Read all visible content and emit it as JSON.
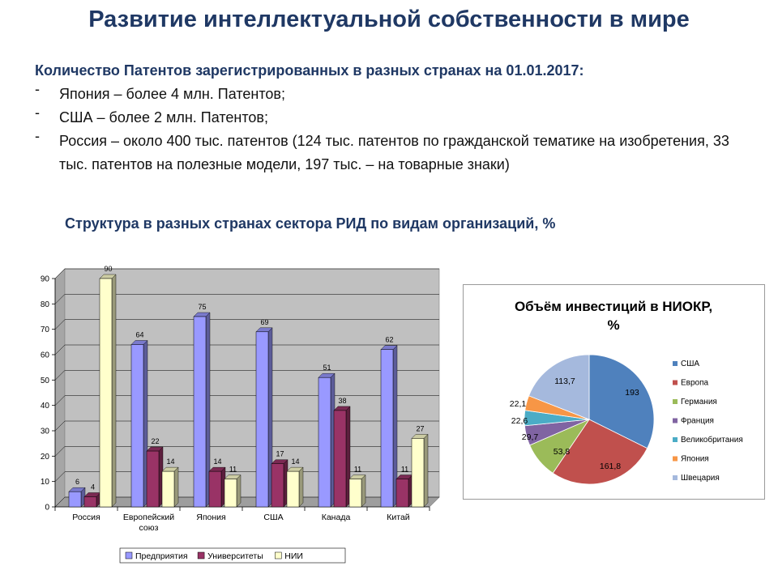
{
  "title": "Развитие интеллектуальной собственности в мире",
  "patents": {
    "heading": "Количество Патентов зарегистрированных в разных странах на 01.01.2017:",
    "bullet_marker": "-",
    "items": [
      "Япония – более 4 млн. Патентов;",
      "США – более 2 млн. Патентов;",
      "Россия – около 400 тыс. патентов (124 тыс. патентов по гражданской тематике на изобретения, 33 тыс. патентов на полезные модели, 197 тыс. – на товарные знаки)"
    ]
  },
  "structure_title": "Структура в разных странах сектора РИД по видам организаций, %",
  "chart_data": [
    {
      "type": "bar",
      "title": "",
      "xlabel": "",
      "ylabel": "",
      "categories": [
        "Россия",
        "Европейский союз",
        "Япония",
        "США",
        "Канада",
        "Китай"
      ],
      "series": [
        {
          "name": "Предприятия",
          "values": [
            6,
            64,
            75,
            69,
            51,
            62
          ],
          "color": "#9999ff"
        },
        {
          "name": "Университеты",
          "values": [
            4,
            22,
            14,
            17,
            38,
            11
          ],
          "color": "#993366"
        },
        {
          "name": "НИИ",
          "values": [
            90,
            14,
            11,
            14,
            11,
            27
          ],
          "color": "#ffffcc"
        }
      ],
      "ylim": [
        0,
        90
      ],
      "yticks": [
        0,
        10,
        20,
        30,
        40,
        50,
        60,
        70,
        80,
        90
      ],
      "grid": true,
      "legend_position": "bottom",
      "style": "3d",
      "plot_background": "#c0c0c0"
    },
    {
      "type": "pie",
      "title": "Объём инвестиций в НИОКР, %",
      "labels": [
        "США",
        "Европа",
        "Германия",
        "Франция",
        "Великобритания",
        "Япония",
        "Швецария"
      ],
      "values": [
        193,
        161.8,
        53.8,
        29.7,
        22.6,
        22.1,
        113.7
      ],
      "value_labels": [
        "193",
        "161,8",
        "53,8",
        "29,7",
        "22,6",
        "22,1",
        "113,7"
      ],
      "colors": [
        "#4f81bd",
        "#c0504d",
        "#9bbb59",
        "#8064a2",
        "#4bacc6",
        "#f79646",
        "#a5b9dd"
      ],
      "legend_position": "right"
    }
  ]
}
